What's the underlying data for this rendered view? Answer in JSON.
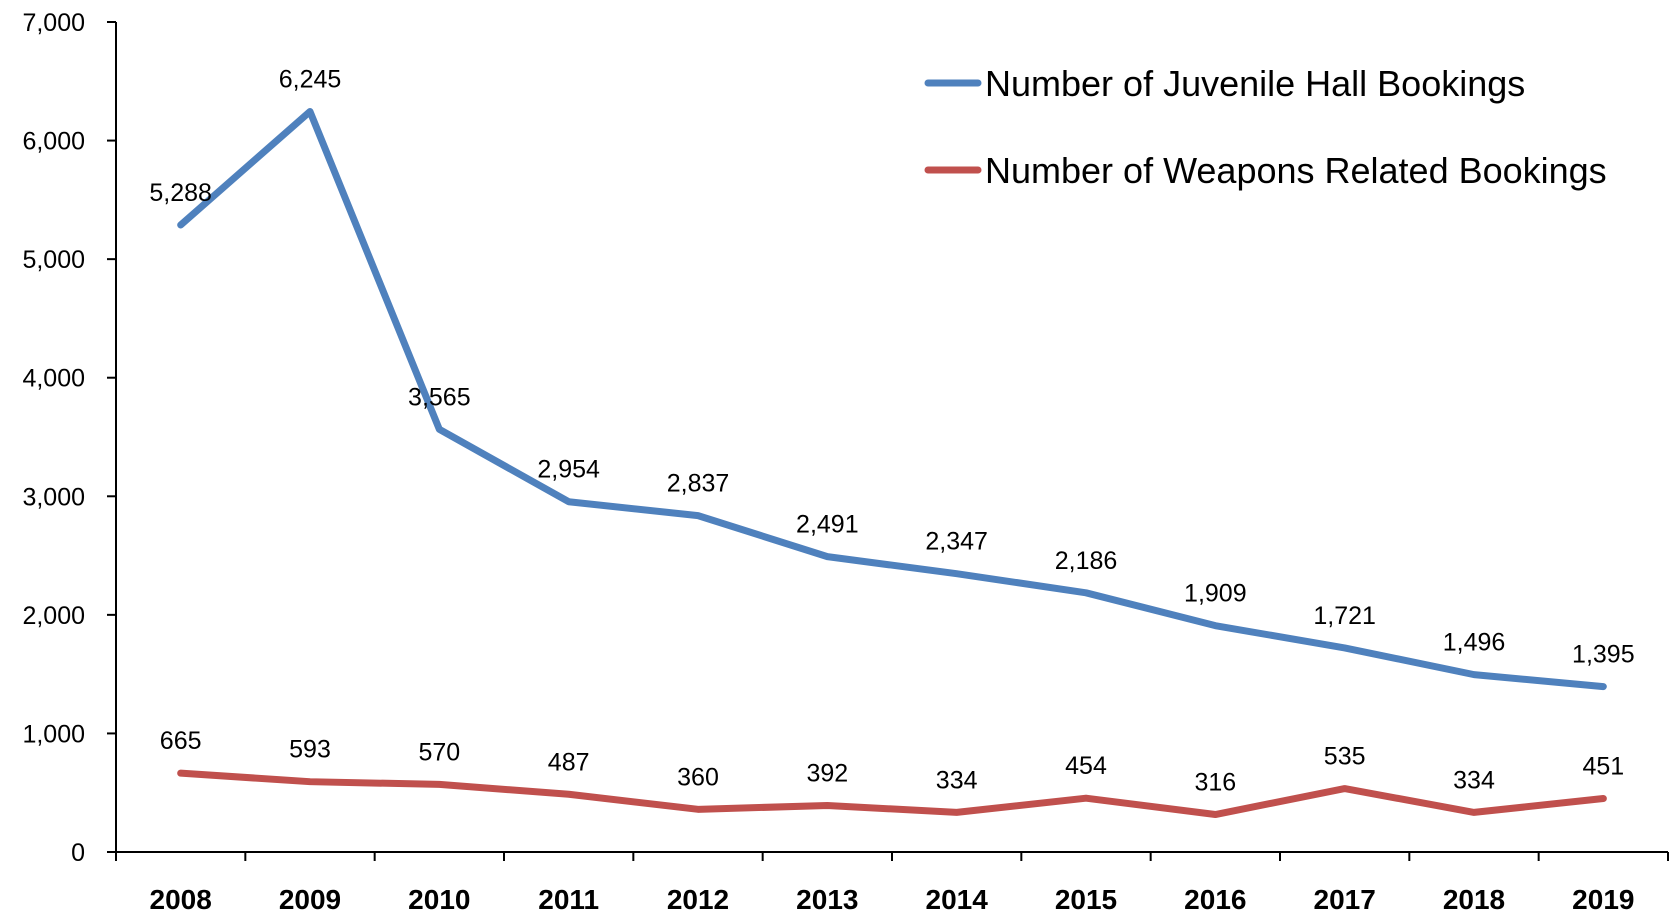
{
  "chart_data": {
    "type": "line",
    "title": "",
    "xlabel": "",
    "ylabel": "",
    "categories": [
      "2008",
      "2009",
      "2010",
      "2011",
      "2012",
      "2013",
      "2014",
      "2015",
      "2016",
      "2017",
      "2018",
      "2019"
    ],
    "ylim": [
      0,
      7000
    ],
    "yticks": [
      0,
      1000,
      2000,
      3000,
      4000,
      5000,
      6000,
      7000
    ],
    "ytick_labels": [
      "0",
      "1,000",
      "2,000",
      "3,000",
      "4,000",
      "5,000",
      "6,000",
      "7,000"
    ],
    "grid": false,
    "legend_position": "top-right",
    "series": [
      {
        "name": "Number of Juvenile Hall Bookings",
        "color": "#4f81bd",
        "values": [
          5288,
          6245,
          3565,
          2954,
          2837,
          2491,
          2347,
          2186,
          1909,
          1721,
          1496,
          1395
        ],
        "labels": [
          "5,288",
          "6,245",
          "3,565",
          "2,954",
          "2,837",
          "2,491",
          "2,347",
          "2,186",
          "1,909",
          "1,721",
          "1,496",
          "1,395"
        ]
      },
      {
        "name": "Number of Weapons Related Bookings",
        "color": "#c0504d",
        "values": [
          665,
          593,
          570,
          487,
          360,
          392,
          334,
          454,
          316,
          535,
          334,
          451
        ],
        "labels": [
          "665",
          "593",
          "570",
          "487",
          "360",
          "392",
          "334",
          "454",
          "316",
          "535",
          "334",
          "451"
        ]
      }
    ]
  }
}
